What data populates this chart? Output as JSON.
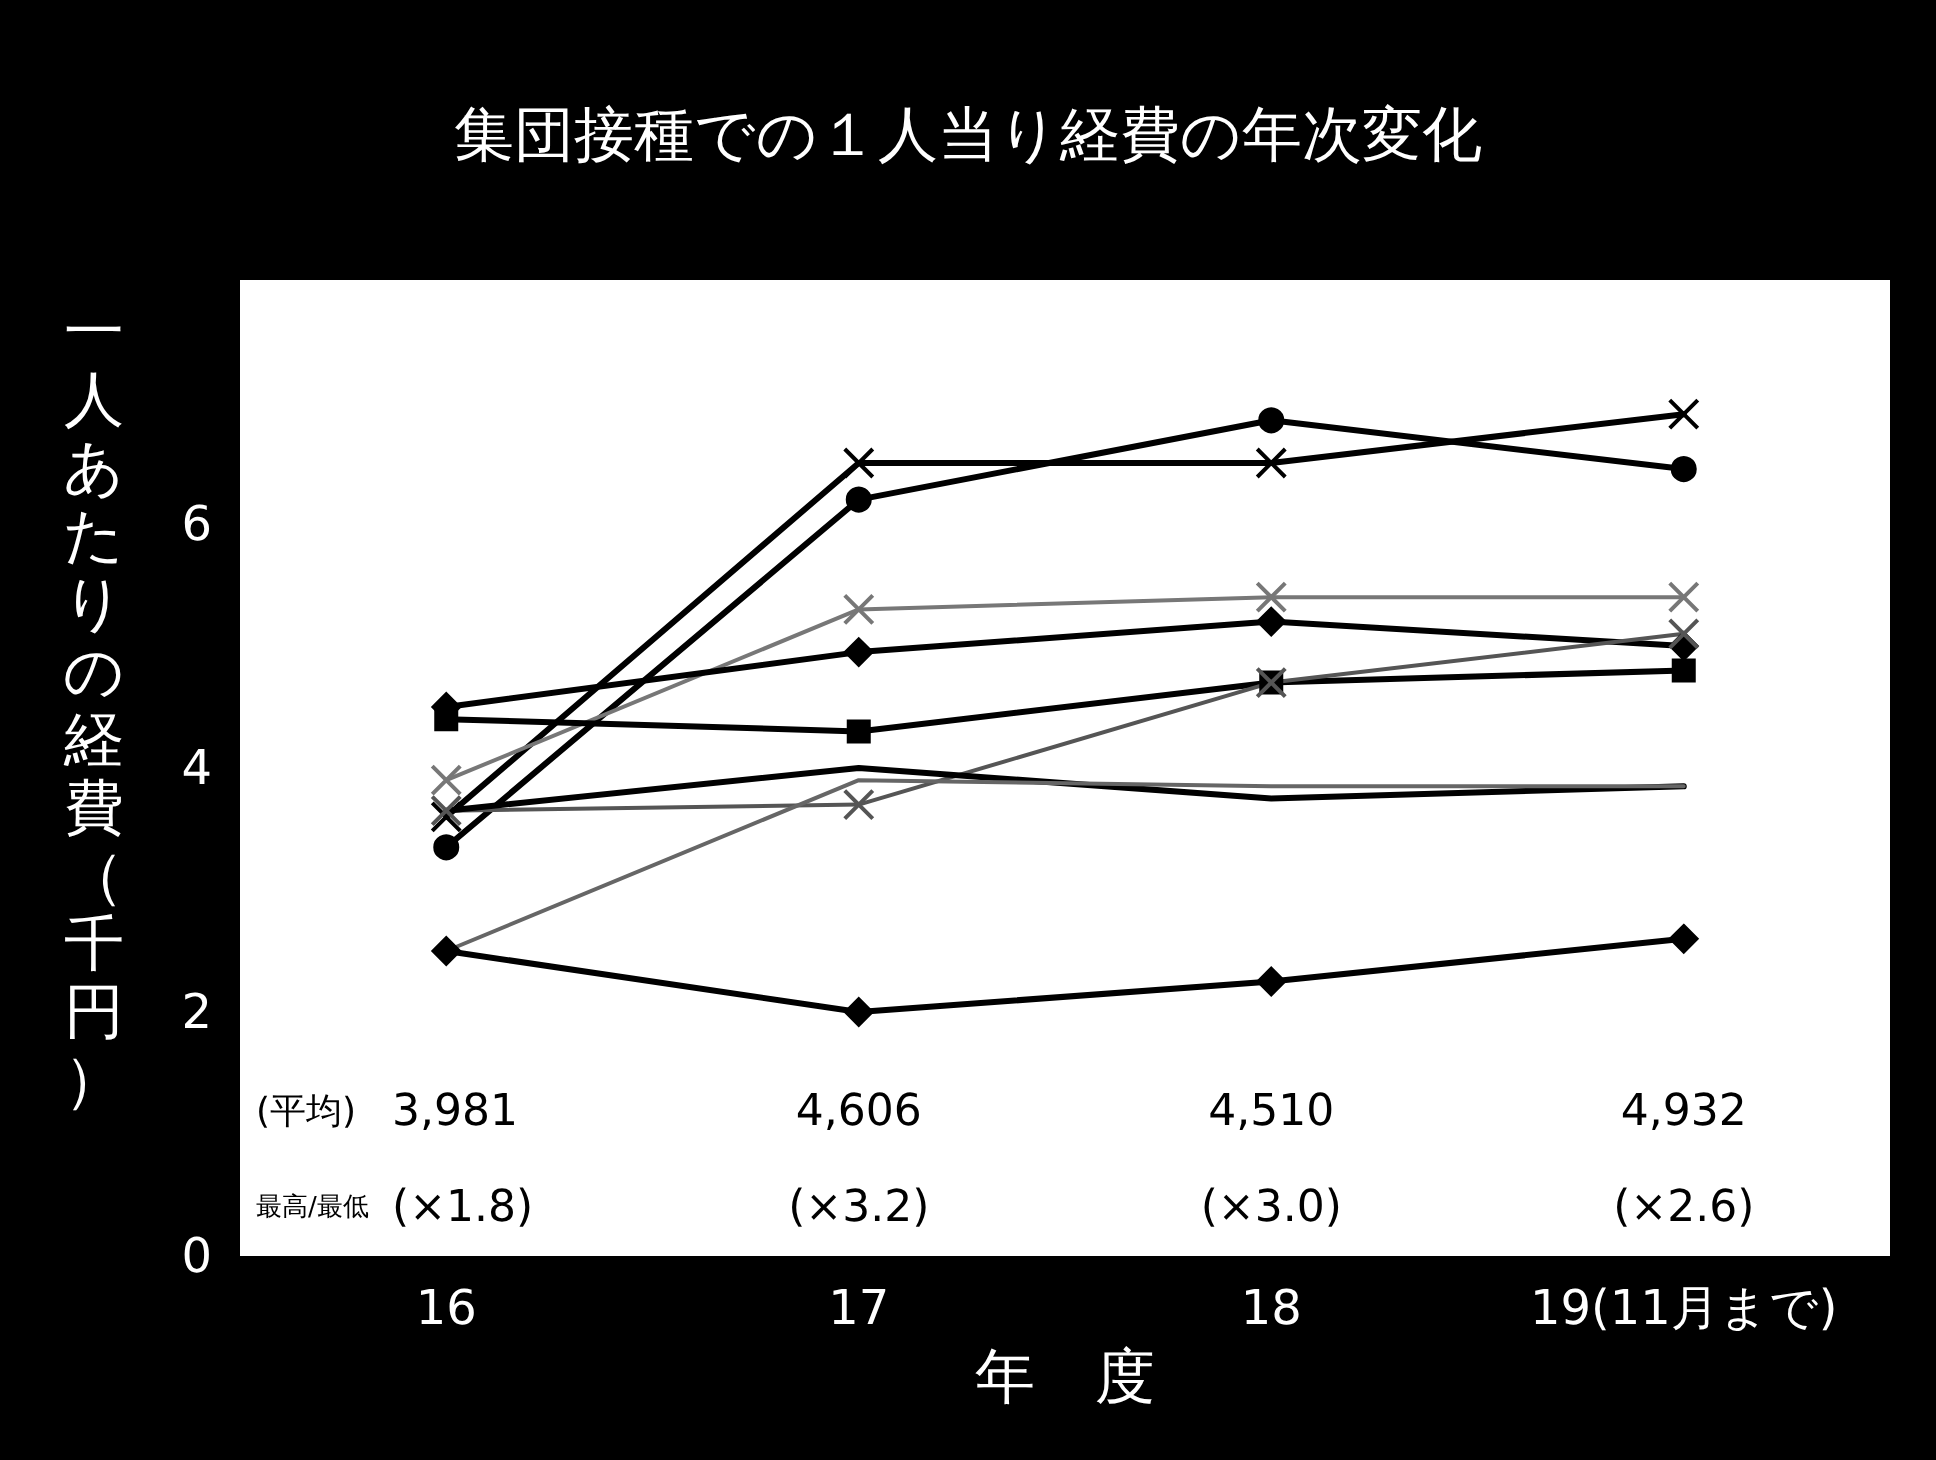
{
  "chart_data": {
    "type": "line",
    "title": "集団接種での１人当り経費の年次変化",
    "xlabel": "年　度",
    "ylabel": "一人あたりの経費（千円）",
    "categories": [
      "16",
      "17",
      "18",
      "19(11月まで)"
    ],
    "series": [
      {
        "color": "#000000",
        "marker": "cross",
        "values": [
          3.6,
          6.5,
          6.5,
          6.9
        ]
      },
      {
        "color": "#000000",
        "marker": "circle",
        "values": [
          3.35,
          6.2,
          6.85,
          6.45
        ]
      },
      {
        "color": "#777777",
        "marker": "cross",
        "values": [
          3.9,
          5.3,
          5.4,
          5.4
        ]
      },
      {
        "color": "#000000",
        "marker": "diamond",
        "values": [
          4.5,
          4.95,
          5.2,
          5.0
        ]
      },
      {
        "color": "#000000",
        "marker": "square",
        "values": [
          4.4,
          4.3,
          4.7,
          4.8
        ]
      },
      {
        "color": "#555555",
        "marker": "cross",
        "values": [
          3.65,
          3.7,
          4.7,
          5.1
        ]
      },
      {
        "color": "#000000",
        "marker": "none",
        "values": [
          3.65,
          4.0,
          3.75,
          3.85
        ]
      },
      {
        "color": "#666666",
        "marker": "none",
        "values": [
          2.5,
          3.9,
          3.85,
          3.85
        ]
      },
      {
        "color": "#000000",
        "marker": "diamond",
        "values": [
          2.5,
          2.0,
          2.25,
          2.6
        ]
      }
    ],
    "ylim": [
      0,
      8
    ],
    "yticks": [
      0,
      2,
      4,
      6
    ],
    "grid": false,
    "annotations": [
      "(平均)",
      "3,981",
      "4,606",
      "4,510",
      "4,932",
      "最高/最低",
      "(×1.8)",
      "(×3.2)",
      "(×3.0)",
      "(×2.6)"
    ]
  }
}
